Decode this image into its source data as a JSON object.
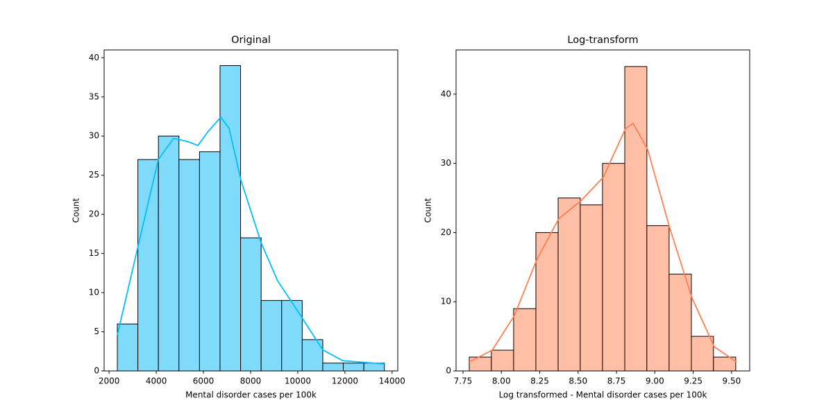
{
  "chart_data": [
    {
      "type": "histogram",
      "title": "Original",
      "xlabel": "Mental disorder cases per 100k",
      "ylabel": "Count",
      "bins": [
        2350,
        3221,
        4092,
        4963,
        5834,
        6705,
        7576,
        8447,
        9318,
        10189,
        11060,
        11931,
        12802,
        13673
      ],
      "values": [
        6,
        27,
        30,
        27,
        28,
        39,
        17,
        9,
        9,
        4,
        1,
        1,
        1
      ],
      "color": "#80dbfb",
      "edge_color": "#000000",
      "kde": {
        "x": [
          2353,
          3265,
          4088,
          4735,
          5324,
          5765,
          6206,
          6735,
          7088,
          7588,
          8441,
          9147,
          10029,
          11059,
          11912,
          12794,
          13676
        ],
        "y": [
          4.6,
          16.4,
          27,
          29.7,
          29.3,
          28.8,
          30.6,
          32.4,
          31,
          24.4,
          16.4,
          11.5,
          7.5,
          2.7,
          1.3,
          1.1,
          0.9
        ],
        "color": "#00bfff"
      },
      "xlim": [
        1790,
        14240
      ],
      "ylim": [
        0,
        41
      ],
      "xticks": [
        2000,
        4000,
        6000,
        8000,
        10000,
        12000,
        14000
      ],
      "yticks": [
        0,
        5,
        10,
        15,
        20,
        25,
        30,
        35,
        40
      ]
    },
    {
      "type": "histogram",
      "title": "Log-transform",
      "xlabel": "Log transformed - Mental disorder cases per 100k",
      "ylabel": "Count",
      "bins": [
        7.791,
        7.935,
        8.08,
        8.225,
        8.37,
        8.514,
        8.659,
        8.804,
        8.948,
        9.093,
        9.238,
        9.382,
        9.527
      ],
      "values": [
        2,
        3,
        9,
        20,
        25,
        24,
        30,
        44,
        21,
        14,
        5,
        2
      ],
      "color": "#ffbfa7",
      "edge_color": "#000000",
      "kde": {
        "x": [
          7.791,
          7.94,
          8.085,
          8.229,
          8.374,
          8.519,
          8.664,
          8.808,
          8.858,
          8.953,
          9.098,
          9.243,
          9.387,
          9.532
        ],
        "y": [
          1.3,
          3,
          8,
          16,
          22,
          24.6,
          28,
          35,
          35.8,
          32,
          20.6,
          10.5,
          3.5,
          1.3
        ],
        "color": "#ff7f50"
      },
      "xlim": [
        7.705,
        9.618
      ],
      "ylim": [
        0,
        46.4
      ],
      "xticks": [
        7.75,
        {
          "value": 8,
          "label": "8.00"
        },
        8.25,
        {
          "value": 8.5,
          "label": "8.50"
        },
        8.75,
        {
          "value": 9,
          "label": "9.00"
        },
        9.25,
        {
          "value": 9.5,
          "label": "9.50"
        }
      ],
      "yticks": [
        0,
        10,
        20,
        30,
        40
      ]
    }
  ]
}
